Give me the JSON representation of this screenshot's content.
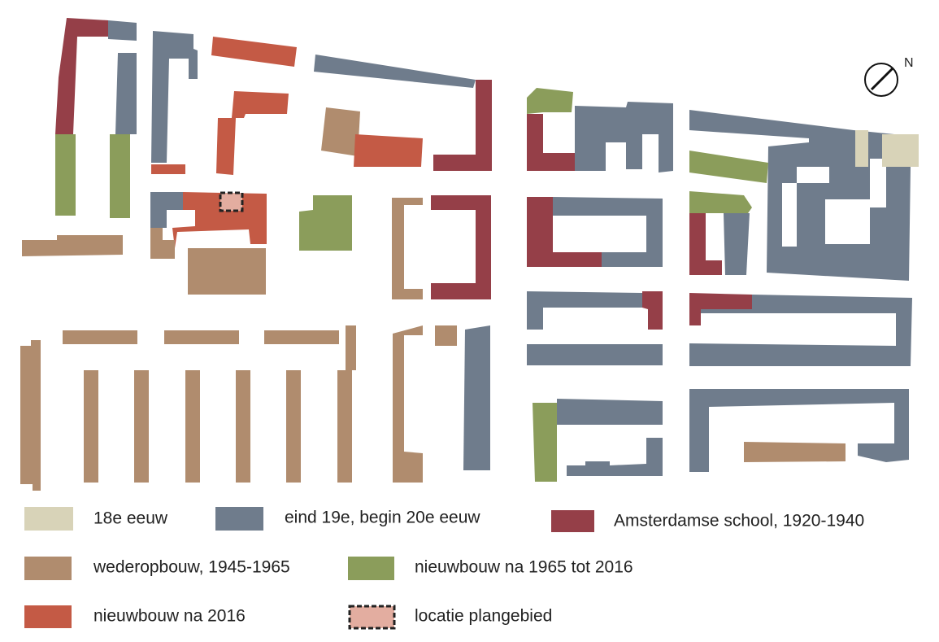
{
  "legend": [
    {
      "label": "18e eeuw"
    },
    {
      "label": "eind 19e, begin 20e eeuw"
    },
    {
      "label": "Amsterdamse school, 1920-1940"
    },
    {
      "label": "wederopbouw, 1945-1965"
    },
    {
      "label": "nieuwbouw na 1965 tot 2016"
    },
    {
      "label": "nieuwbouw na 2016"
    },
    {
      "label": "locatie plangebied"
    }
  ],
  "north_label": "N"
}
